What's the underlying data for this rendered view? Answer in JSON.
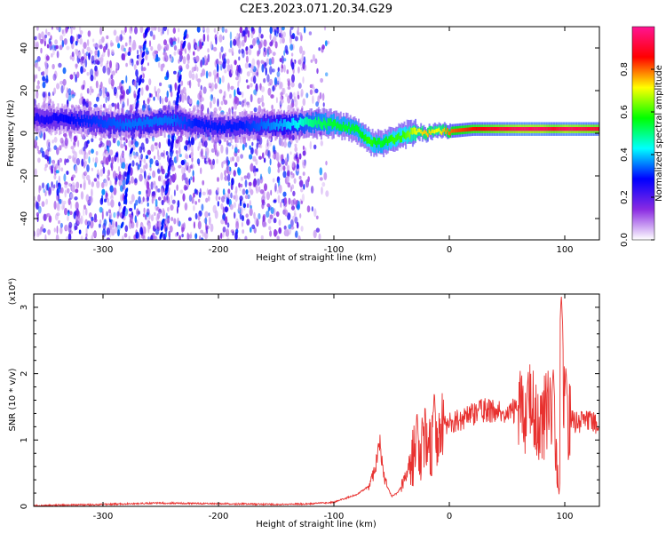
{
  "title": "C2E3.2023.071.20.34.G29",
  "chart_data": [
    {
      "type": "heatmap",
      "panel": "spectrogram",
      "xlabel": "Height of straight line (km)",
      "ylabel": "Frequency (Hz)",
      "xlim": [
        -360,
        130
      ],
      "ylim": [
        -50,
        50
      ],
      "x_ticks": [
        -300,
        -200,
        -100,
        0,
        100
      ],
      "x_tick_labels": [
        "-300",
        "-200",
        "-100",
        "0",
        "100"
      ],
      "y_ticks": [
        -40,
        -20,
        0,
        20,
        40
      ],
      "y_tick_labels": [
        "-40",
        "-20",
        "0",
        "20",
        "40"
      ],
      "colorbar": {
        "label": "Normalized spectral amplitude",
        "range": [
          0,
          1
        ],
        "ticks": [
          0.0,
          0.2,
          0.4,
          0.6,
          0.8
        ],
        "tick_labels": [
          "0.0",
          "0.2",
          "0.4",
          "0.6",
          "0.8"
        ],
        "colormap": [
          "#ffffff",
          "#8a2be2",
          "#0000ff",
          "#00ffff",
          "#00ff00",
          "#ffff00",
          "#ff0000",
          "#ff1493"
        ]
      },
      "noise_region_x": [
        -360,
        -125
      ],
      "signal_ridge": {
        "x": [
          -360,
          -320,
          -280,
          -260,
          -240,
          -220,
          -200,
          -180,
          -160,
          -140,
          -120,
          -100,
          -90,
          -80,
          -70,
          -60,
          -50,
          -40,
          -30,
          -20,
          -10,
          0,
          20,
          40,
          60,
          80,
          90,
          100,
          130
        ],
        "frequency": [
          7,
          6,
          4,
          5,
          6,
          4,
          3,
          3,
          4,
          4,
          5,
          4,
          3,
          1,
          -4,
          -5,
          -3,
          -1,
          1,
          0,
          1,
          1,
          2,
          2,
          2,
          2,
          2,
          2,
          2
        ],
        "amplitude": [
          0.25,
          0.3,
          0.35,
          0.35,
          0.35,
          0.3,
          0.3,
          0.3,
          0.35,
          0.4,
          0.5,
          0.55,
          0.55,
          0.55,
          0.6,
          0.55,
          0.6,
          0.6,
          0.7,
          0.75,
          0.7,
          0.8,
          0.85,
          0.9,
          0.95,
          0.95,
          0.9,
          0.95,
          0.9
        ]
      },
      "oblique_streaks": [
        {
          "x_start": -285,
          "f_start": -50,
          "x_end": -262,
          "f_end": 50
        },
        {
          "x_start": -250,
          "f_start": -50,
          "x_end": -228,
          "f_end": 50
        }
      ]
    },
    {
      "type": "line",
      "panel": "snr",
      "xlabel": "Height of straight line (km)",
      "ylabel": "SNR (10 * v/v)",
      "y_scale_label": "(x10⁴)",
      "xlim": [
        -360,
        130
      ],
      "ylim": [
        0,
        3.2
      ],
      "x_ticks": [
        -300,
        -200,
        -100,
        0,
        100
      ],
      "x_tick_labels": [
        "-300",
        "-200",
        "-100",
        "0",
        "100"
      ],
      "y_ticks": [
        0,
        1,
        2,
        3
      ],
      "y_tick_labels": [
        "0",
        "1",
        "2",
        "3"
      ],
      "series": [
        {
          "color": "#e8312f",
          "x": [
            -360,
            -300,
            -250,
            -200,
            -150,
            -120,
            -100,
            -90,
            -80,
            -70,
            -65,
            -60,
            -58,
            -55,
            -50,
            -45,
            -40,
            -35,
            -30,
            -28,
            -25,
            -20,
            -15,
            -10,
            -5,
            0,
            10,
            20,
            30,
            40,
            50,
            60,
            65,
            70,
            75,
            80,
            85,
            90,
            95,
            98,
            100,
            103,
            110,
            120,
            130
          ],
          "y": [
            0.01,
            0.03,
            0.05,
            0.04,
            0.03,
            0.04,
            0.06,
            0.12,
            0.18,
            0.3,
            0.5,
            0.95,
            0.6,
            0.35,
            0.15,
            0.2,
            0.35,
            0.6,
            0.8,
            1.0,
            0.85,
            1.0,
            0.95,
            1.05,
            1.2,
            1.25,
            1.32,
            1.4,
            1.45,
            1.45,
            1.45,
            1.43,
            1.35,
            1.5,
            1.3,
            1.1,
            1.6,
            1.2,
            0.2,
            1.9,
            1.5,
            1.3,
            1.27,
            1.27,
            1.26
          ],
          "spike_peaks": [
            {
              "x": -60,
              "y": 1.0
            },
            {
              "x": -28,
              "y": 1.45
            },
            {
              "x": -13,
              "y": 1.75
            },
            {
              "x": 68,
              "y": 1.95
            },
            {
              "x": 90,
              "y": 2.1
            },
            {
              "x": 97,
              "y": 3.2
            },
            {
              "x": 101,
              "y": 2.1
            }
          ]
        }
      ]
    }
  ]
}
